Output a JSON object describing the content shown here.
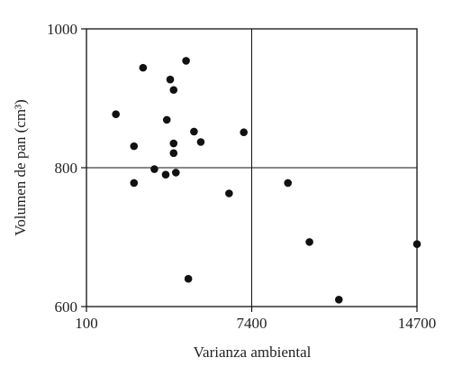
{
  "chart_data": {
    "type": "scatter",
    "xlabel": "Varianza ambiental",
    "ylabel": "Volumen de pan (cm³)",
    "xlim": [
      100,
      14700
    ],
    "ylim": [
      600,
      1000
    ],
    "x_ticks": [
      100,
      7400,
      14700
    ],
    "y_ticks": [
      600,
      800,
      1000
    ],
    "x_tick_labels": [
      "100",
      "7400",
      "14700"
    ],
    "y_tick_labels": [
      "600",
      "800",
      "1000"
    ],
    "reference_lines": {
      "x": 7400,
      "y": 800
    },
    "grid": false,
    "marker_color": "#111111",
    "points": [
      {
        "x": 1400,
        "y": 877
      },
      {
        "x": 2200,
        "y": 831
      },
      {
        "x": 2200,
        "y": 778
      },
      {
        "x": 2600,
        "y": 944
      },
      {
        "x": 3100,
        "y": 798
      },
      {
        "x": 3600,
        "y": 790
      },
      {
        "x": 3650,
        "y": 869
      },
      {
        "x": 3800,
        "y": 927
      },
      {
        "x": 3950,
        "y": 912
      },
      {
        "x": 3950,
        "y": 835
      },
      {
        "x": 3950,
        "y": 821
      },
      {
        "x": 4050,
        "y": 793
      },
      {
        "x": 4500,
        "y": 954
      },
      {
        "x": 4600,
        "y": 640
      },
      {
        "x": 4850,
        "y": 852
      },
      {
        "x": 5150,
        "y": 837
      },
      {
        "x": 6400,
        "y": 763
      },
      {
        "x": 7050,
        "y": 851
      },
      {
        "x": 9000,
        "y": 778
      },
      {
        "x": 9950,
        "y": 693
      },
      {
        "x": 11250,
        "y": 610
      },
      {
        "x": 14700,
        "y": 690
      }
    ]
  }
}
